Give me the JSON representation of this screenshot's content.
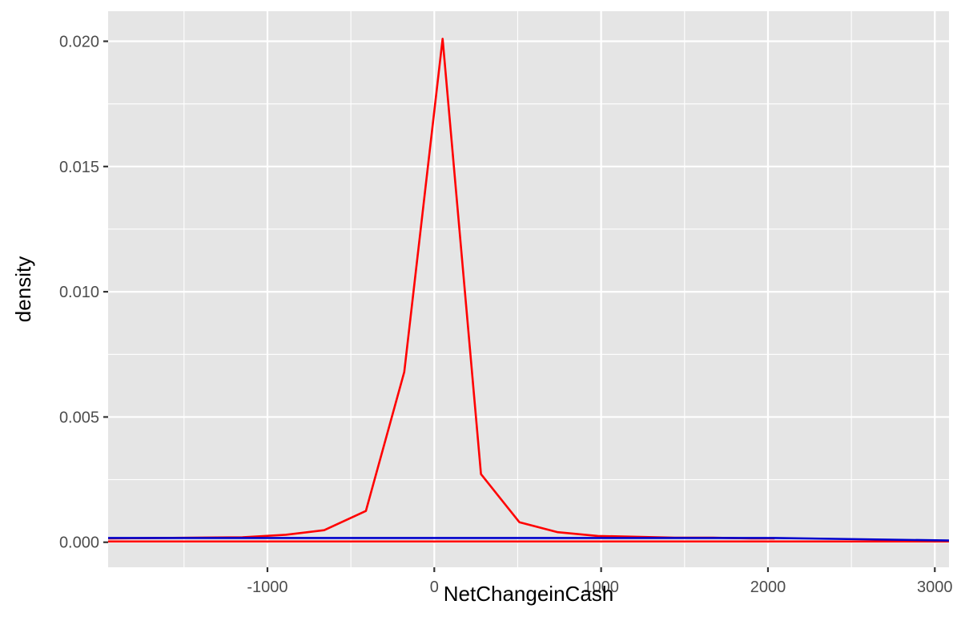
{
  "chart_data": {
    "type": "line",
    "title": "",
    "xlabel": "NetChangeinCash",
    "ylabel": "density",
    "xlim": [
      -1955,
      3085
    ],
    "ylim": [
      -0.001,
      0.0212
    ],
    "x_ticks": [
      -1000,
      0,
      1000,
      2000,
      3000
    ],
    "x_minor_ticks": [
      -1500,
      -500,
      500,
      1500,
      2500
    ],
    "x_tick_labels": [
      "-1000",
      "0",
      "1000",
      "2000",
      "3000"
    ],
    "y_ticks": [
      0.0,
      0.005,
      0.01,
      0.015,
      0.02
    ],
    "y_minor_ticks": [
      0.0025,
      0.0075,
      0.0125,
      0.0175
    ],
    "y_tick_labels": [
      "0.000",
      "0.005",
      "0.010",
      "0.015",
      "0.020"
    ],
    "grid": true,
    "legend": "none",
    "background": "#e5e5e5",
    "series": [
      {
        "color": "#ff0000",
        "x": [
          -1955,
          -1150,
          -890,
          -660,
          -410,
          -180,
          50,
          280,
          510,
          740,
          980,
          1210,
          1440,
          1670,
          1900,
          2040
        ],
        "y": [
          0.00015,
          0.0002,
          0.0003,
          0.00048,
          0.00125,
          0.0068,
          0.0201,
          0.00272,
          0.0008,
          0.0004,
          0.00025,
          0.00022,
          0.00018,
          0.00018,
          0.00015,
          0.00015
        ]
      },
      {
        "color": "#ff0000",
        "x": [
          -1955,
          3085
        ],
        "y": [
          3e-05,
          3e-05
        ]
      },
      {
        "color": "#0000cc",
        "x": [
          -1955,
          2040,
          3085
        ],
        "y": [
          0.00017,
          0.00017,
          7e-05
        ]
      }
    ]
  }
}
